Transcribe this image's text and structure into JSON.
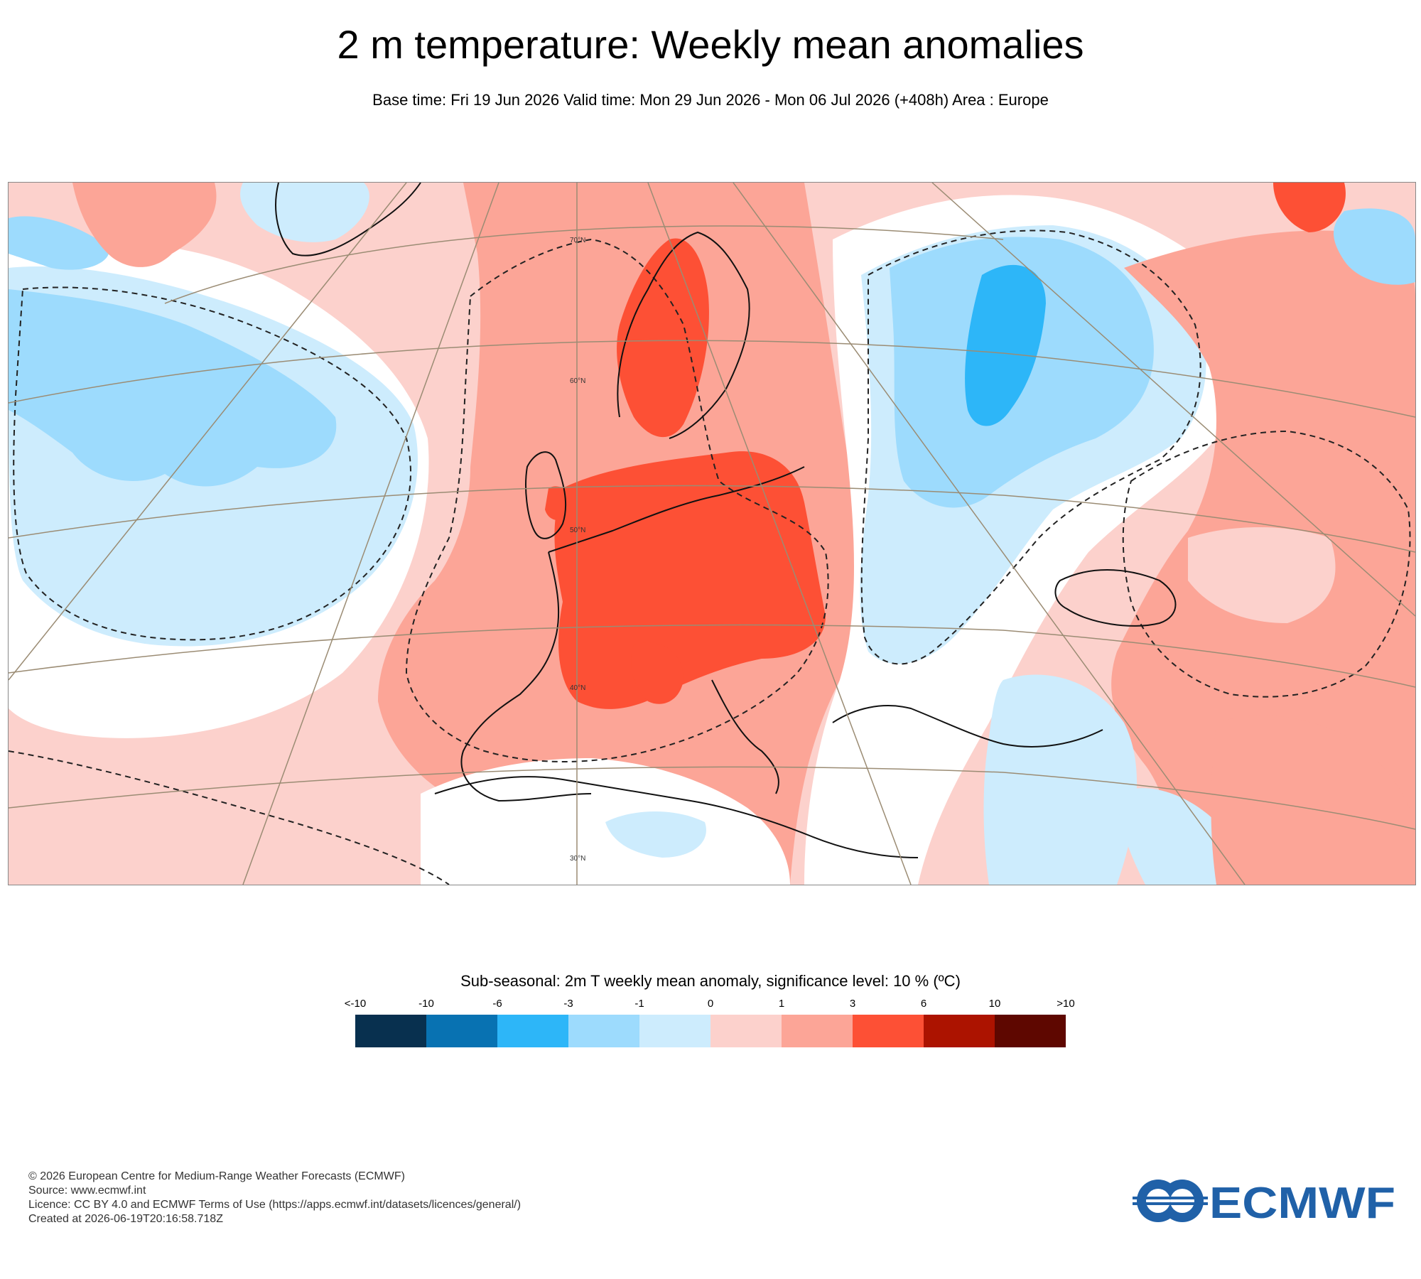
{
  "title": "2 m temperature: Weekly mean anomalies",
  "subtitle": "Base time: Fri 19 Jun 2026 Valid time: Mon 29 Jun 2026 - Mon 06 Jul 2026 (+408h) Area : Europe",
  "map": {
    "latitude_labels": [
      "70°N",
      "60°N",
      "50°N",
      "40°N",
      "30°N"
    ]
  },
  "legend": {
    "title": "Sub-seasonal: 2m T weekly mean anomaly, significance level: 10 % (ºC)",
    "ticks": [
      "<-10",
      "-10",
      "-6",
      "-3",
      "-1",
      "0",
      "1",
      "3",
      "6",
      "10",
      ">10"
    ],
    "colors": [
      "#08304f",
      "#0872b2",
      "#2db6f8",
      "#9ddbfd",
      "#cdecfd",
      "#fcd1cc",
      "#fca597",
      "#fd5035",
      "#ac1300",
      "#5e0700"
    ]
  },
  "footer": {
    "line1": "© 2026 European Centre for Medium-Range Weather Forecasts (ECMWF)",
    "line2": "Source: www.ecmwf.int",
    "line3": "Licence: CC BY 4.0 and ECMWF Terms of Use (https://apps.ecmwf.int/datasets/licences/general/)",
    "line4": "Created at 2026-06-19T20:16:58.718Z"
  },
  "logo_text": "ECMWF"
}
